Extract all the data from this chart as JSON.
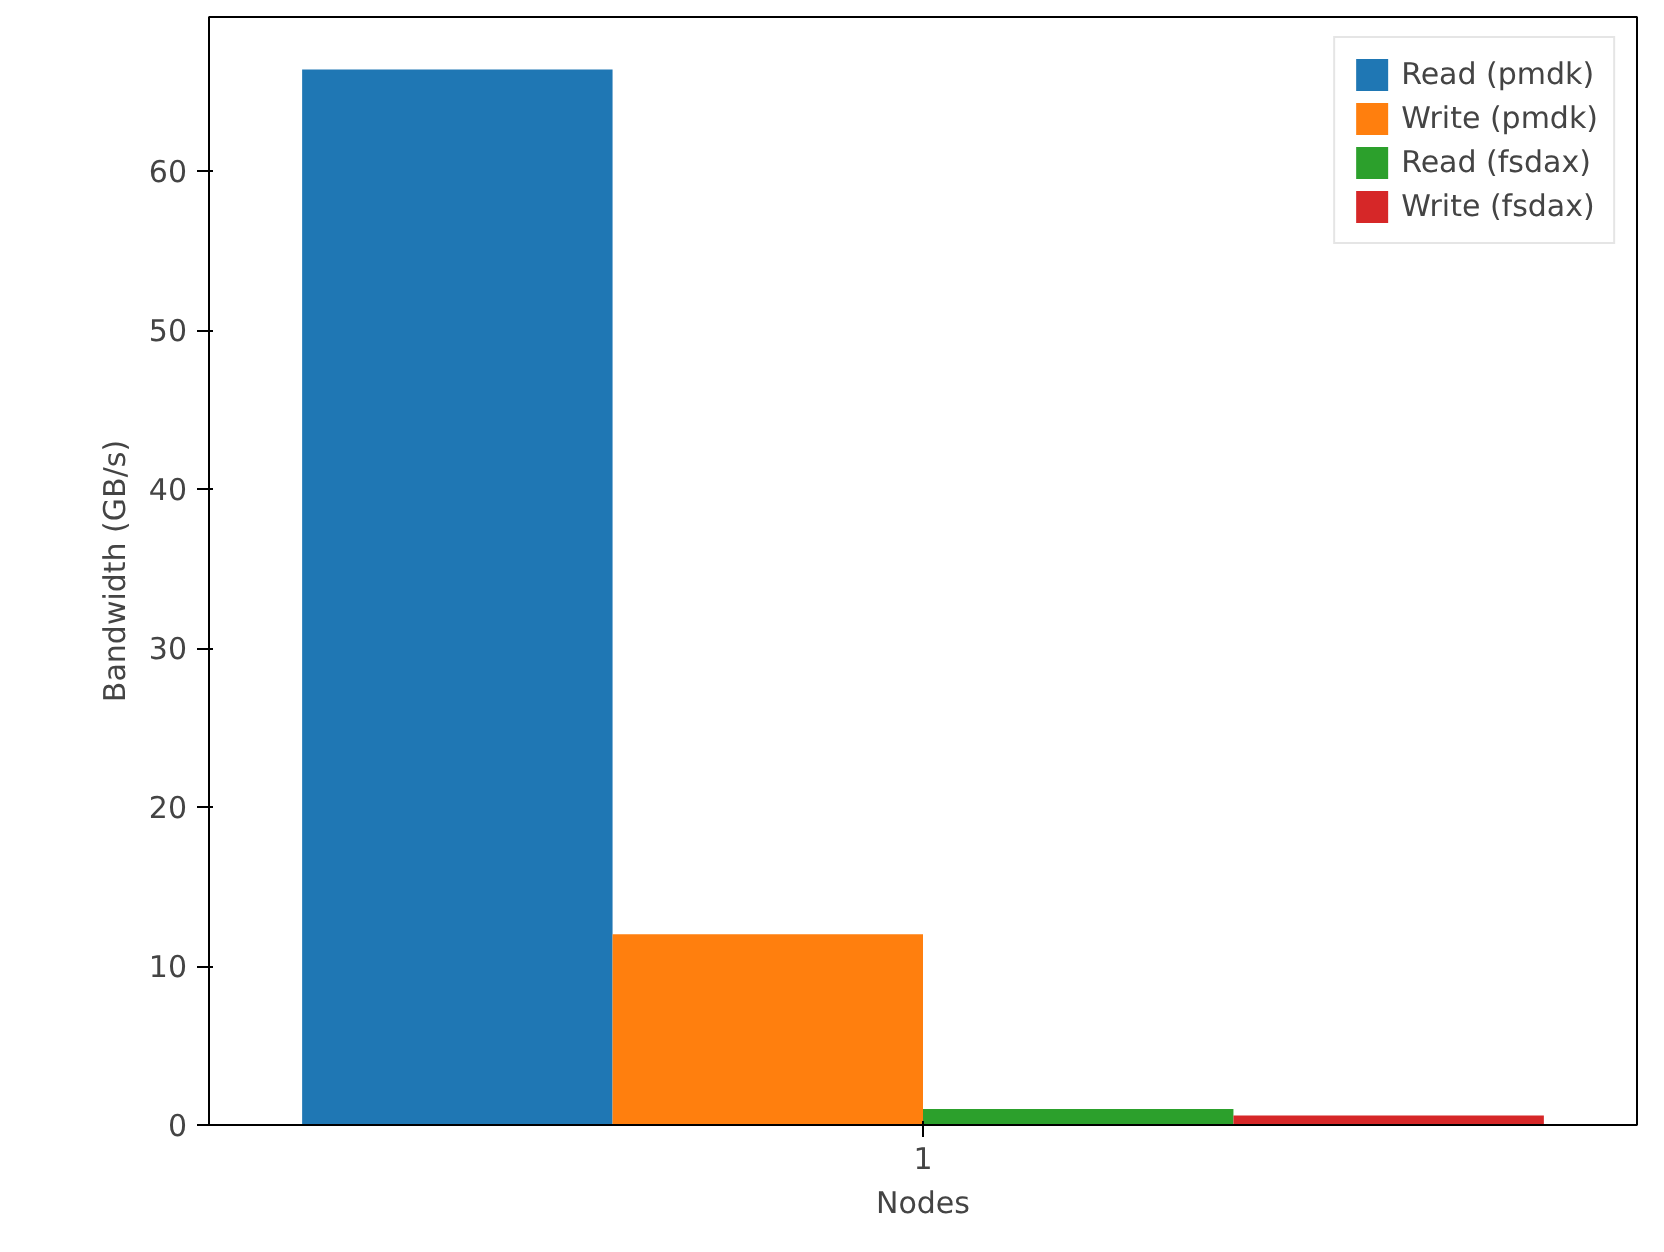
{
  "chart_data": {
    "type": "bar",
    "xlabel": "Nodes",
    "ylabel": "Bandwidth (GB/s)",
    "categories": [
      "1"
    ],
    "series": [
      {
        "name": "Read (pmdk)",
        "color": "#1f77b4",
        "values": [
          66.4
        ]
      },
      {
        "name": "Write (pmdk)",
        "color": "#ff7f0e",
        "values": [
          12.0
        ]
      },
      {
        "name": "Read (fsdax)",
        "color": "#2ca02c",
        "values": [
          1.0
        ]
      },
      {
        "name": "Write (fsdax)",
        "color": "#d62728",
        "values": [
          0.6
        ]
      }
    ],
    "ylim": [
      0,
      69.7
    ],
    "yticks": [
      0,
      10,
      20,
      30,
      40,
      50,
      60
    ],
    "grid": false,
    "legend": "top right"
  }
}
